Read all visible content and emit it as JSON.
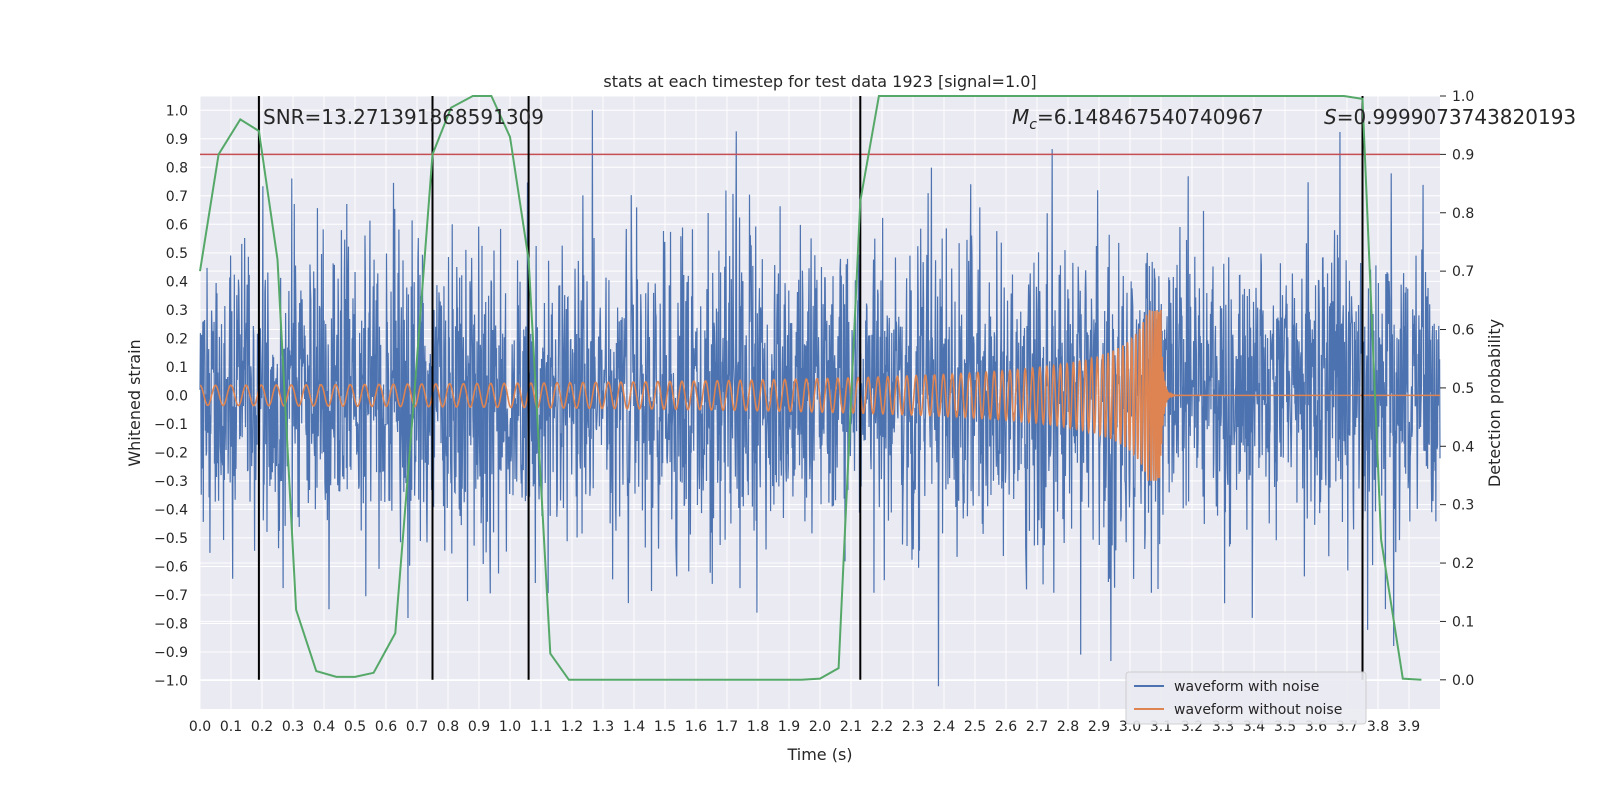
{
  "chart_data": {
    "type": "line",
    "title": "stats at each timestep for test data 1923 [signal=1.0]",
    "xlabel": "Time (s)",
    "ylabel": "Whitened strain",
    "y2label": "Detection probability",
    "xlim": [
      0.0,
      4.0
    ],
    "ylim": [
      -1.1,
      1.05
    ],
    "y2lim": [
      -0.05,
      1.0
    ],
    "x_ticks": [
      0.0,
      0.1,
      0.2,
      0.3,
      0.4,
      0.5,
      0.6,
      0.7,
      0.8,
      0.9,
      1.0,
      1.1,
      1.2,
      1.3,
      1.4,
      1.5,
      1.6,
      1.7,
      1.8,
      1.9,
      2.0,
      2.1,
      2.2,
      2.3,
      2.4,
      2.5,
      2.6,
      2.7,
      2.8,
      2.9,
      3.0,
      3.1,
      3.2,
      3.3,
      3.4,
      3.5,
      3.6,
      3.7,
      3.8,
      3.9
    ],
    "x_tick_labels": [
      "0.0",
      "0.1",
      "0.2",
      "0.3",
      "0.4",
      "0.5",
      "0.6",
      "0.7",
      "0.8",
      "0.9",
      "1.0",
      "1.1",
      "1.2",
      "1.3",
      "1.4",
      "1.5",
      "1.6",
      "1.7",
      "1.8",
      "1.9",
      "2.0",
      "2.1",
      "2.2",
      "2.3",
      "2.4",
      "2.5",
      "2.6",
      "2.7",
      "2.8",
      "2.9",
      "3.0",
      "3.1",
      "3.2",
      "3.3",
      "3.4",
      "3.5",
      "3.6",
      "3.7",
      "3.8",
      "3.9"
    ],
    "y_ticks": [
      1.0,
      0.9,
      0.8,
      0.7,
      0.6,
      0.5,
      0.4,
      0.3,
      0.2,
      0.1,
      0.0,
      -0.1,
      -0.2,
      -0.3,
      -0.4,
      -0.5,
      -0.6,
      -0.7,
      -0.8,
      -0.9,
      -1.0
    ],
    "y_tick_labels": [
      "1.0",
      "0.9",
      "0.8",
      "0.7",
      "0.6",
      "0.5",
      "0.4",
      "0.3",
      "0.2",
      "0.1",
      "0.0",
      "−0.1",
      "−0.2",
      "−0.3",
      "−0.4",
      "−0.5",
      "−0.6",
      "−0.7",
      "−0.8",
      "−0.9",
      "−1.0"
    ],
    "y2_ticks": [
      0.0,
      0.1,
      0.2,
      0.3,
      0.4,
      0.5,
      0.6,
      0.7,
      0.8,
      0.9,
      1.0
    ],
    "y2_tick_labels": [
      "0.0",
      "0.1",
      "0.2",
      "0.3",
      "0.4",
      "0.5",
      "0.6",
      "0.7",
      "0.8",
      "0.9",
      "1.0"
    ],
    "legend_position": "lower-right",
    "series": [
      {
        "name": "waveform with noise",
        "color": "#4c72b0",
        "noise_scale": 0.27,
        "noise_seed": 1923,
        "points": 3000
      },
      {
        "name": "waveform without noise",
        "color": "#dd8452",
        "chirp_f0": 20,
        "chirp_tc": 3.1,
        "chirp_amp0": 0.035
      },
      {
        "name": "Detection probability",
        "color": "#55a868",
        "axis": "right",
        "x": [
          0.0,
          0.06,
          0.13,
          0.19,
          0.25,
          0.31,
          0.375,
          0.44,
          0.5,
          0.56,
          0.63,
          0.69,
          0.75,
          0.81,
          0.88,
          0.94,
          1.0,
          1.06,
          1.13,
          1.19,
          1.25,
          1.31,
          1.375,
          1.44,
          1.5,
          1.56,
          1.63,
          1.69,
          1.75,
          1.81,
          1.88,
          1.94,
          2.0,
          2.06,
          2.13,
          2.19,
          2.25,
          2.31,
          2.375,
          2.44,
          2.5,
          2.56,
          2.63,
          2.69,
          2.75,
          2.81,
          2.88,
          2.94,
          3.0,
          3.06,
          3.13,
          3.19,
          3.25,
          3.31,
          3.375,
          3.44,
          3.5,
          3.56,
          3.63,
          3.69,
          3.75,
          3.81,
          3.88,
          3.94
        ],
        "y": [
          0.7,
          0.9,
          0.96,
          0.94,
          0.72,
          0.12,
          0.015,
          0.005,
          0.005,
          0.012,
          0.08,
          0.48,
          0.9,
          0.98,
          1.0,
          1.0,
          0.93,
          0.72,
          0.045,
          0.0,
          0.0,
          0.0,
          0.0,
          0.0,
          0.0,
          0.0,
          0.0,
          0.0,
          0.0,
          0.0,
          0.0,
          0.0,
          0.002,
          0.02,
          0.82,
          1.0,
          1.0,
          1.0,
          1.0,
          1.0,
          1.0,
          1.0,
          1.0,
          1.0,
          1.0,
          1.0,
          1.0,
          1.0,
          1.0,
          1.0,
          1.0,
          1.0,
          1.0,
          1.0,
          1.0,
          1.0,
          1.0,
          1.0,
          1.0,
          1.0,
          0.995,
          0.24,
          0.002,
          0.0
        ]
      }
    ],
    "threshold": {
      "value": 0.9,
      "axis": "right",
      "color": "#c44e52"
    },
    "vertical_lines": [
      0.19,
      0.75,
      1.06,
      2.13,
      3.75
    ],
    "annotations": {
      "snr": "SNR=13.271391868591309",
      "mc": "M_c=6.148467540740967",
      "mc_prefix": "M",
      "mc_sub": "c",
      "mc_value": "=6.148467540740967",
      "s": "S=0.9999073743820193",
      "s_prefix": "S",
      "s_value": "=0.9999073743820193"
    }
  }
}
